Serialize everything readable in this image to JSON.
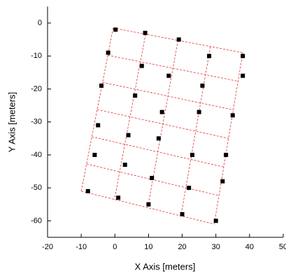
{
  "chart_data": {
    "type": "scatter",
    "x_label": "X Axis [meters]",
    "y_label": "Y Axis [meters]",
    "xlim": [
      -20,
      50
    ],
    "ylim": [
      -65,
      5
    ],
    "xticks": [
      -20,
      -10,
      0,
      10,
      20,
      30,
      40,
      50
    ],
    "yticks": [
      0,
      -10,
      -20,
      -30,
      -40,
      -50,
      -60
    ],
    "series": [
      {
        "color": "#000000",
        "x": [
          0.2,
          9,
          19,
          28,
          38,
          -2,
          8,
          16,
          26,
          38,
          -4,
          6,
          14,
          25,
          35,
          -5,
          4,
          13,
          23,
          33,
          -6,
          3,
          11,
          22,
          32,
          -8,
          1,
          10,
          20,
          30
        ],
        "values": [
          -2,
          -3,
          -5,
          -10,
          -10,
          -9,
          -13,
          -16,
          -19,
          -16,
          -19,
          -22,
          -27,
          -27,
          -28,
          -31,
          -34,
          -35,
          -40,
          -40,
          -40,
          -43,
          -47,
          -50,
          -48,
          -51,
          -53,
          -55,
          -58,
          -60
        ]
      }
    ],
    "lattice": {
      "color": "#e03030",
      "columns": 4,
      "rows": 6,
      "top_left": [
        -0.5,
        -1.5
      ],
      "top_right": [
        38,
        -9
      ],
      "bottom_left": [
        -10,
        -51
      ],
      "bottom_right": [
        29.5,
        -61
      ]
    }
  }
}
